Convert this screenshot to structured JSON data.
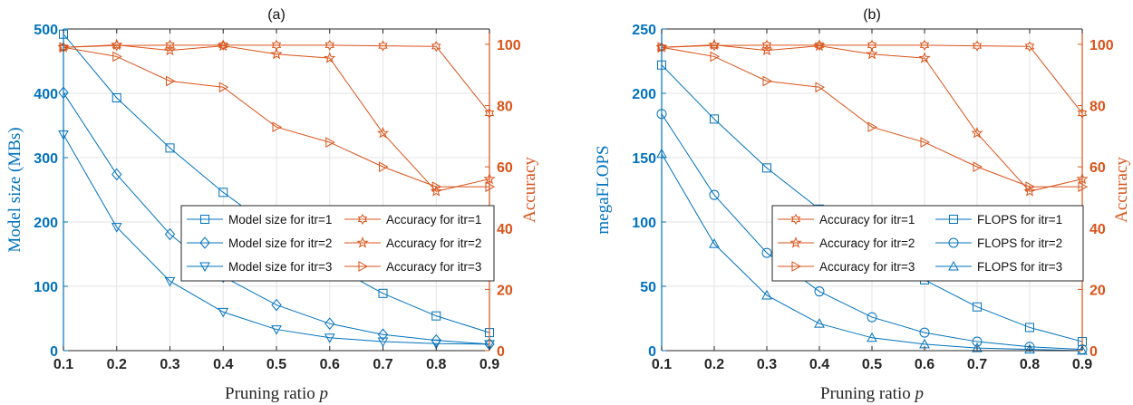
{
  "chart_data": [
    {
      "type": "line",
      "title": "(a)",
      "xlabel": "Pruning ratio p",
      "ylabel_left": "Model size (MBs)",
      "ylabel_right": "Accuracy",
      "x": [
        0.1,
        0.2,
        0.3,
        0.4,
        0.5,
        0.6,
        0.7,
        0.8,
        0.9
      ],
      "xticks": [
        "0.1",
        "0.2",
        "0.3",
        "0.4",
        "0.5",
        "0.6",
        "0.7",
        "0.8",
        "0.9"
      ],
      "ylim_left": [
        0,
        500
      ],
      "yticks_left": [
        "0",
        "100",
        "200",
        "300",
        "400",
        "500"
      ],
      "ylim_right": [
        0,
        105
      ],
      "yticks_right": [
        "0",
        "20",
        "40",
        "60",
        "80",
        "100"
      ],
      "grid": true,
      "legend_columns": 2,
      "legend_position": "center-right",
      "colors": {
        "left_axis": "#0072BD",
        "right_axis": "#D95319"
      },
      "series": [
        {
          "name": "Model size for itr=1",
          "axis": "left",
          "marker": "square",
          "color": "#0072BD",
          "values": [
            492,
            393,
            315,
            246,
            186,
            134,
            89,
            54,
            28
          ]
        },
        {
          "name": "Model size for itr=2",
          "axis": "left",
          "marker": "diamond",
          "color": "#0072BD",
          "values": [
            401,
            274,
            181,
            115,
            71,
            42,
            25,
            16,
            10
          ]
        },
        {
          "name": "Model size for itr=3",
          "axis": "left",
          "marker": "triangle-down",
          "color": "#0072BD",
          "values": [
            336,
            192,
            108,
            60,
            33,
            20,
            14,
            11,
            10
          ]
        },
        {
          "name": "Accuracy for itr=1",
          "axis": "right",
          "marker": "hexagram",
          "color": "#D95319",
          "values": [
            99,
            99.6,
            99.7,
            99.7,
            99.7,
            99.7,
            99.5,
            99.3,
            77.5
          ]
        },
        {
          "name": "Accuracy for itr=2",
          "axis": "right",
          "marker": "pentagram",
          "color": "#D95319",
          "values": [
            99,
            99.8,
            98,
            99.5,
            96.8,
            95.5,
            71,
            52,
            56
          ]
        },
        {
          "name": "Accuracy for itr=3",
          "axis": "right",
          "marker": "triangle-right",
          "color": "#D95319",
          "values": [
            99,
            96,
            88,
            86,
            73,
            68,
            60,
            53.5,
            53.5
          ]
        }
      ]
    },
    {
      "type": "line",
      "title": "(b)",
      "xlabel": "Pruning ratio p",
      "ylabel_left": "megaFLOPS",
      "ylabel_right": "Accuracy",
      "x": [
        0.1,
        0.2,
        0.3,
        0.4,
        0.5,
        0.6,
        0.7,
        0.8,
        0.9
      ],
      "xticks": [
        "0.1",
        "0.2",
        "0.3",
        "0.4",
        "0.5",
        "0.6",
        "0.7",
        "0.8",
        "0.9"
      ],
      "ylim_left": [
        0,
        250
      ],
      "yticks_left": [
        "0",
        "50",
        "100",
        "150",
        "200",
        "250"
      ],
      "ylim_right": [
        0,
        105
      ],
      "yticks_right": [
        "0",
        "20",
        "40",
        "60",
        "80",
        "100"
      ],
      "grid": true,
      "legend_columns": 2,
      "legend_position": "center-right",
      "colors": {
        "left_axis": "#0072BD",
        "right_axis": "#D95319"
      },
      "series": [
        {
          "name": "Accuracy for itr=1",
          "axis": "right",
          "marker": "hexagram",
          "color": "#D95319",
          "values": [
            99,
            99.6,
            99.7,
            99.7,
            99.7,
            99.7,
            99.5,
            99.3,
            77.5
          ]
        },
        {
          "name": "Accuracy for itr=2",
          "axis": "right",
          "marker": "pentagram",
          "color": "#D95319",
          "values": [
            99,
            99.8,
            98,
            99.5,
            96.8,
            95.5,
            71,
            52,
            56
          ]
        },
        {
          "name": "Accuracy for itr=3",
          "axis": "right",
          "marker": "triangle-right",
          "color": "#D95319",
          "values": [
            99,
            96,
            88,
            86,
            73,
            68,
            60,
            53.5,
            53.5
          ]
        },
        {
          "name": "FLOPS for itr=1",
          "axis": "left",
          "marker": "square",
          "color": "#0072BD",
          "values": [
            222,
            180,
            142,
            110,
            80,
            55,
            34,
            18,
            7
          ]
        },
        {
          "name": "FLOPS for itr=2",
          "axis": "left",
          "marker": "circle",
          "color": "#0072BD",
          "values": [
            184,
            121,
            76,
            46,
            26,
            14,
            7,
            3,
            1
          ]
        },
        {
          "name": "FLOPS for itr=3",
          "axis": "left",
          "marker": "triangle-up",
          "color": "#0072BD",
          "values": [
            153,
            83,
            43,
            21,
            10,
            5,
            2,
            1,
            0
          ]
        }
      ]
    }
  ]
}
